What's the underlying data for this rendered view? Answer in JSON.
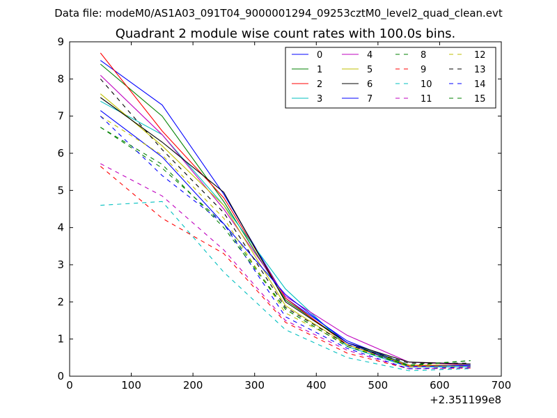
{
  "suptitle": "Data file: modeM0/AS1A03_091T04_9000001294_09253cztM0_level2_quad_clean.evt",
  "chart_data": {
    "type": "line",
    "title": "Quadrant 2 module wise count rates with 100.0s bins.",
    "xlabel": "",
    "ylabel": "",
    "xlim": [
      0,
      700
    ],
    "ylim": [
      0,
      9
    ],
    "x_offset_label": "+2.351199e8",
    "x_ticks": [
      0,
      100,
      200,
      300,
      400,
      500,
      600,
      700
    ],
    "y_ticks": [
      0,
      1,
      2,
      3,
      4,
      5,
      6,
      7,
      8,
      9
    ],
    "x": [
      50,
      150,
      250,
      350,
      450,
      550,
      650
    ],
    "legend_position": "top-right",
    "series": [
      {
        "name": "0",
        "color": "#0000ff",
        "style": "solid",
        "values": [
          8.5,
          7.3,
          4.9,
          2.1,
          0.95,
          0.3,
          0.28
        ]
      },
      {
        "name": "1",
        "color": "#008000",
        "style": "solid",
        "values": [
          8.4,
          7.0,
          4.7,
          2.05,
          0.9,
          0.3,
          0.3
        ]
      },
      {
        "name": "2",
        "color": "#ff0000",
        "style": "solid",
        "values": [
          8.7,
          6.6,
          4.8,
          2.1,
          0.85,
          0.28,
          0.3
        ]
      },
      {
        "name": "3",
        "color": "#00bfbf",
        "style": "solid",
        "values": [
          7.4,
          6.5,
          4.6,
          2.35,
          0.8,
          0.25,
          0.25
        ]
      },
      {
        "name": "4",
        "color": "#bf00bf",
        "style": "solid",
        "values": [
          8.1,
          6.5,
          4.5,
          2.15,
          1.1,
          0.38,
          0.3
        ]
      },
      {
        "name": "5",
        "color": "#bfbf00",
        "style": "solid",
        "values": [
          7.6,
          6.2,
          4.6,
          1.9,
          0.85,
          0.3,
          0.3
        ]
      },
      {
        "name": "6",
        "color": "#000000",
        "style": "solid",
        "values": [
          7.5,
          6.3,
          4.95,
          2.0,
          0.9,
          0.38,
          0.33
        ]
      },
      {
        "name": "7",
        "color": "#0000ff",
        "style": "solid",
        "values": [
          7.15,
          5.9,
          4.1,
          2.2,
          0.9,
          0.25,
          0.3
        ]
      },
      {
        "name": "8",
        "color": "#008000",
        "style": "dashed",
        "values": [
          6.7,
          5.6,
          4.1,
          1.8,
          0.8,
          0.3,
          0.42
        ]
      },
      {
        "name": "9",
        "color": "#ff0000",
        "style": "dashed",
        "values": [
          5.65,
          4.25,
          3.3,
          1.45,
          0.62,
          0.2,
          0.22
        ]
      },
      {
        "name": "10",
        "color": "#00bfbf",
        "style": "dashed",
        "values": [
          4.6,
          4.7,
          2.8,
          1.25,
          0.5,
          0.15,
          0.2
        ]
      },
      {
        "name": "11",
        "color": "#bf00bf",
        "style": "dashed",
        "values": [
          5.72,
          4.85,
          3.4,
          1.5,
          0.7,
          0.2,
          0.22
        ]
      },
      {
        "name": "12",
        "color": "#bfbf00",
        "style": "dashed",
        "values": [
          7.0,
          5.95,
          4.25,
          1.7,
          0.85,
          0.25,
          0.27
        ]
      },
      {
        "name": "13",
        "color": "#000000",
        "style": "dashed",
        "values": [
          8.0,
          6.1,
          4.4,
          1.85,
          0.85,
          0.35,
          0.35
        ]
      },
      {
        "name": "14",
        "color": "#0000ff",
        "style": "dashed",
        "values": [
          7.0,
          5.4,
          4.1,
          1.6,
          0.75,
          0.2,
          0.25
        ]
      },
      {
        "name": "15",
        "color": "#008000",
        "style": "dashed",
        "values": [
          6.7,
          5.7,
          4.0,
          1.8,
          0.8,
          0.28,
          0.42
        ]
      }
    ]
  }
}
